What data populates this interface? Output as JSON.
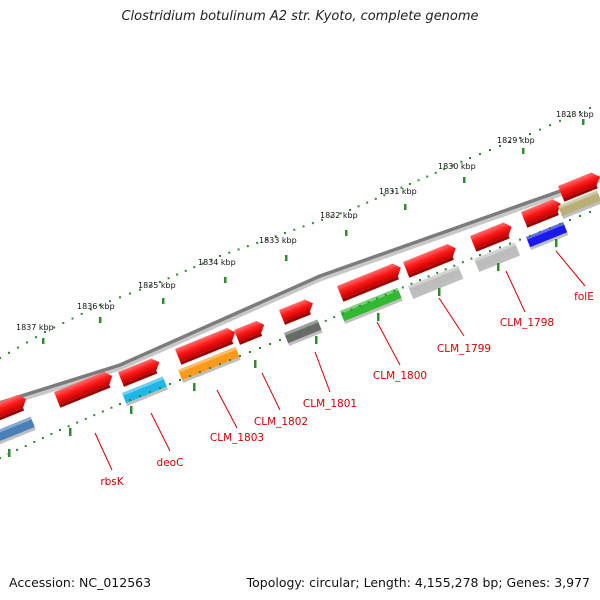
{
  "title": "Clostridium botulinum A2 str. Kyoto, complete genome",
  "footer": {
    "accession": "Accession: NC_012563",
    "stats": "Topology: circular; Length: 4,155,278 bp; Genes: 3,977"
  },
  "scale_labels": [
    "1828 kbp",
    "1829 kbp",
    "1830 kbp",
    "1831 kbp",
    "1832 kbp",
    "1833 kbp",
    "1834 kbp",
    "1835 kbp",
    "1836 kbp",
    "1837 kbp"
  ],
  "gene_labels": [
    "folE",
    "CLM_1798",
    "CLM_1799",
    "CLM_1800",
    "CLM_1801",
    "CLM_1802",
    "CLM_1803",
    "deoC",
    "rbsK"
  ],
  "colors": {
    "feature_red": "#ff1a1a",
    "backbone": "#808080",
    "tick_green": "#2e8b2e",
    "label_red": "#d40000",
    "cds_colors": [
      "#4a7fb8",
      "#1fb6e8",
      "#ff9a1a",
      "#6a6a6a",
      "#33b833",
      "#bdbdbd",
      "#bdbdbd",
      "#1a1aee",
      "#b8b078"
    ]
  }
}
